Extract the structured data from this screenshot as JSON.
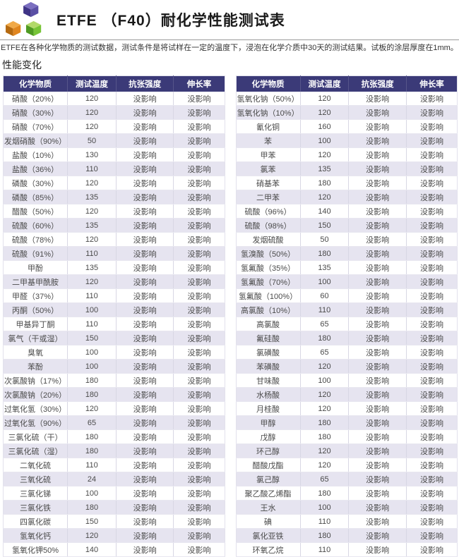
{
  "page": {
    "title": "ETFE （F40）耐化学性能测试表",
    "description": "ETFE在各种化学物质的测试数据，测试条件是将试样在一定的温度下，浸泡在化学介质中30天的测试结果。试板的涂层厚度在1mm。",
    "section_title": "性能变化"
  },
  "logo": {
    "label": "three-cubes-logo",
    "cube_colors": {
      "purple_top": "#7b6fc0",
      "purple_left": "#3f3486",
      "purple_right": "#5a4fa5",
      "orange_top": "#f0a948",
      "orange_left": "#b56a10",
      "orange_right": "#e0861f",
      "green_top": "#b2d96a",
      "green_left": "#4f9a22",
      "green_right": "#77c437"
    }
  },
  "colors": {
    "header_bg": "#3b3a78",
    "header_text": "#ffffff",
    "row_alt_bg": "#e6e4f0",
    "row_bg": "#ffffff",
    "body_text": "#4a4a4a"
  },
  "table_columns": [
    "化学物质",
    "测试温度",
    "抗张强度",
    "伸长率"
  ],
  "tables": [
    {
      "rows": [
        [
          "硝酸（20%）",
          "120",
          "没影响",
          "没影响"
        ],
        [
          "硝酸（30%）",
          "120",
          "没影响",
          "没影响"
        ],
        [
          "硝酸（70%）",
          "120",
          "没影响",
          "没影响"
        ],
        [
          "发烟硝酸（90%）",
          "50",
          "没影响",
          "没影响"
        ],
        [
          "盐酸（10%）",
          "130",
          "没影响",
          "没影响"
        ],
        [
          "盐酸（36%）",
          "110",
          "没影响",
          "没影响"
        ],
        [
          "磷酸（30%）",
          "120",
          "没影响",
          "没影响"
        ],
        [
          "磷酸（85%）",
          "135",
          "没影响",
          "没影响"
        ],
        [
          "醋酸（50%）",
          "120",
          "没影响",
          "没影响"
        ],
        [
          "硫酸（60%）",
          "135",
          "没影响",
          "没影响"
        ],
        [
          "硫酸（78%）",
          "120",
          "没影响",
          "没影响"
        ],
        [
          "硫酸（91%）",
          "110",
          "没影响",
          "没影响"
        ],
        [
          "甲酚",
          "135",
          "没影响",
          "没影响"
        ],
        [
          "二甲基甲酰胺",
          "120",
          "没影响",
          "没影响"
        ],
        [
          "甲醛（37%）",
          "110",
          "没影响",
          "没影响"
        ],
        [
          "丙酮（50%）",
          "100",
          "没影响",
          "没影响"
        ],
        [
          "甲基异丁酮",
          "110",
          "没影响",
          "没影响"
        ],
        [
          "氯气（干或湿）",
          "150",
          "没影响",
          "没影响"
        ],
        [
          "臭氧",
          "100",
          "没影响",
          "没影响"
        ],
        [
          "苯酚",
          "100",
          "没影响",
          "没影响"
        ],
        [
          "次氯酸钠（17%）",
          "180",
          "没影响",
          "没影响"
        ],
        [
          "次氯酸钠（20%）",
          "180",
          "没影响",
          "没影响"
        ],
        [
          "过氧化氢（30%）",
          "120",
          "没影响",
          "没影响"
        ],
        [
          "过氧化氢（90%）",
          "65",
          "没影响",
          "没影响"
        ],
        [
          "三氯化硫（干）",
          "180",
          "没影响",
          "没影响"
        ],
        [
          "三氯化硫（湿）",
          "180",
          "没影响",
          "没影响"
        ],
        [
          "二氧化硫",
          "110",
          "没影响",
          "没影响"
        ],
        [
          "三氧化硫",
          "24",
          "没影响",
          "没影响"
        ],
        [
          "三氯化锑",
          "100",
          "没影响",
          "没影响"
        ],
        [
          "三氯化铁",
          "180",
          "没影响",
          "没影响"
        ],
        [
          "四氯化碳",
          "150",
          "没影响",
          "没影响"
        ],
        [
          "氢氧化钙",
          "120",
          "没影响",
          "没影响"
        ],
        [
          "氢氧化钾50%",
          "140",
          "没影响",
          "没影响"
        ]
      ]
    },
    {
      "rows": [
        [
          "氢氧化钠（50%）",
          "120",
          "没影响",
          "没影响"
        ],
        [
          "氢氧化钠（10%）",
          "120",
          "没影响",
          "没影响"
        ],
        [
          "氰化铜",
          "160",
          "没影响",
          "没影响"
        ],
        [
          "苯",
          "100",
          "没影响",
          "没影响"
        ],
        [
          "甲苯",
          "120",
          "没影响",
          "没影响"
        ],
        [
          "氯苯",
          "135",
          "没影响",
          "没影响"
        ],
        [
          "硝基苯",
          "180",
          "没影响",
          "没影响"
        ],
        [
          "二甲苯",
          "120",
          "没影响",
          "没影响"
        ],
        [
          "硫酸（96%）",
          "140",
          "没影响",
          "没影响"
        ],
        [
          "硫酸（98%）",
          "150",
          "没影响",
          "没影响"
        ],
        [
          "发烟硫酸",
          "50",
          "没影响",
          "没影响"
        ],
        [
          "氢溴酸（50%）",
          "180",
          "没影响",
          "没影响"
        ],
        [
          "氢氟酸（35%）",
          "135",
          "没影响",
          "没影响"
        ],
        [
          "氢氟酸（70%）",
          "100",
          "没影响",
          "没影响"
        ],
        [
          "氢氟酸（100%）",
          "60",
          "没影响",
          "没影响"
        ],
        [
          "高氯酸（10%）",
          "110",
          "没影响",
          "没影响"
        ],
        [
          "高氯酸",
          "65",
          "没影响",
          "没影响"
        ],
        [
          "氟硅酸",
          "180",
          "没影响",
          "没影响"
        ],
        [
          "氯磺酸",
          "65",
          "没影响",
          "没影响"
        ],
        [
          "苯磺酸",
          "120",
          "没影响",
          "没影响"
        ],
        [
          "甘味酸",
          "100",
          "没影响",
          "没影响"
        ],
        [
          "水杨酸",
          "120",
          "没影响",
          "没影响"
        ],
        [
          "月桂酸",
          "120",
          "没影响",
          "没影响"
        ],
        [
          "甲醇",
          "180",
          "没影响",
          "没影响"
        ],
        [
          "戊醇",
          "180",
          "没影响",
          "没影响"
        ],
        [
          "环己醇",
          "120",
          "没影响",
          "没影响"
        ],
        [
          "醋酸戊酯",
          "120",
          "没影响",
          "没影响"
        ],
        [
          "氯己醇",
          "65",
          "没影响",
          "没影响"
        ],
        [
          "聚乙酸乙烯酯",
          "180",
          "没影响",
          "没影响"
        ],
        [
          "王水",
          "100",
          "没影响",
          "没影响"
        ],
        [
          "碘",
          "110",
          "没影响",
          "没影响"
        ],
        [
          "氯化亚铁",
          "180",
          "没影响",
          "没影响"
        ],
        [
          "环氧乙烷",
          "110",
          "没影响",
          "没影响"
        ]
      ]
    }
  ]
}
